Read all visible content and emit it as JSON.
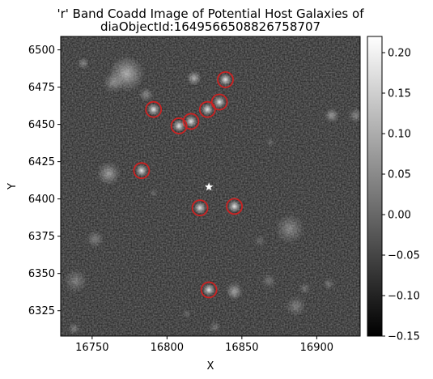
{
  "chart_data": {
    "type": "image",
    "title_lines": [
      "'r' Band Coadd Image of Potential Host Galaxies of",
      "diaObjectId:1649566508826758707"
    ],
    "xlabel": "X",
    "ylabel": "Y",
    "xlim": [
      16729,
      16929
    ],
    "ylim": [
      6308,
      6509
    ],
    "xticks": [
      16750,
      16800,
      16850,
      16900
    ],
    "yticks": [
      6325,
      6350,
      6375,
      6400,
      6425,
      6450,
      6475,
      6500
    ],
    "colorbar": {
      "range": [
        -0.15,
        0.22
      ],
      "ticks": [
        "0.20",
        "0.15",
        "0.10",
        "0.05",
        "0.00",
        "−0.05",
        "−0.10",
        "−0.15"
      ],
      "tick_values": [
        0.2,
        0.15,
        0.1,
        0.05,
        0.0,
        -0.05,
        -0.1,
        -0.15
      ],
      "colormap": "gray"
    },
    "target": {
      "marker": "*",
      "x": 16828,
      "y": 6408,
      "color": "#ffffff"
    },
    "host_candidates": {
      "marker": "circle",
      "color": "#cc2222",
      "points": [
        {
          "x": 16839,
          "y": 6480
        },
        {
          "x": 16791,
          "y": 6460
        },
        {
          "x": 16835,
          "y": 6465
        },
        {
          "x": 16827,
          "y": 6460
        },
        {
          "x": 16816,
          "y": 6452
        },
        {
          "x": 16808,
          "y": 6449
        },
        {
          "x": 16783,
          "y": 6419
        },
        {
          "x": 16822,
          "y": 6394
        },
        {
          "x": 16845,
          "y": 6395
        },
        {
          "x": 16828,
          "y": 6339
        }
      ]
    },
    "background_sources": [
      {
        "x": 16773,
        "y": 6484,
        "r": 12,
        "b": 0.55
      },
      {
        "x": 16764,
        "y": 6478,
        "r": 7,
        "b": 0.35
      },
      {
        "x": 16786,
        "y": 6470,
        "r": 5,
        "b": 0.35
      },
      {
        "x": 16818,
        "y": 6481,
        "r": 5,
        "b": 0.55
      },
      {
        "x": 16761,
        "y": 6417,
        "r": 8,
        "b": 0.45
      },
      {
        "x": 16752,
        "y": 6373,
        "r": 6,
        "b": 0.3
      },
      {
        "x": 16882,
        "y": 6380,
        "r": 10,
        "b": 0.35
      },
      {
        "x": 16739,
        "y": 6345,
        "r": 8,
        "b": 0.3
      },
      {
        "x": 16868,
        "y": 6345,
        "r": 5,
        "b": 0.25
      },
      {
        "x": 16892,
        "y": 6340,
        "r": 4,
        "b": 0.25
      },
      {
        "x": 16908,
        "y": 6343,
        "r": 4,
        "b": 0.25
      },
      {
        "x": 16862,
        "y": 6372,
        "r": 4,
        "b": 0.2
      },
      {
        "x": 16845,
        "y": 6339,
        "r": 6,
        "b": 0.3
      },
      {
        "x": 16886,
        "y": 6328,
        "r": 7,
        "b": 0.3
      },
      {
        "x": 16910,
        "y": 6456,
        "r": 5,
        "b": 0.45
      },
      {
        "x": 16926,
        "y": 6456,
        "r": 5,
        "b": 0.35
      },
      {
        "x": 16744,
        "y": 6491,
        "r": 4,
        "b": 0.35
      },
      {
        "x": 16738,
        "y": 6313,
        "r": 4,
        "b": 0.3
      },
      {
        "x": 16845,
        "y": 6337,
        "r": 5,
        "b": 0.3
      },
      {
        "x": 16832,
        "y": 6314,
        "r": 4,
        "b": 0.25
      },
      {
        "x": 16813,
        "y": 6323,
        "r": 3,
        "b": 0.2
      },
      {
        "x": 16869,
        "y": 6438,
        "r": 3,
        "b": 0.2
      },
      {
        "x": 16791,
        "y": 6404,
        "r": 3,
        "b": 0.2
      }
    ]
  }
}
